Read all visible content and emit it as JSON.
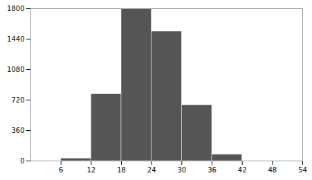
{
  "chart_data": {
    "type": "histogram",
    "bins": [
      0,
      6,
      12,
      18,
      24,
      30,
      36,
      42,
      48,
      54
    ],
    "values": [
      0,
      30,
      790,
      1800,
      1530,
      660,
      75,
      0,
      0
    ],
    "color": "#555555",
    "xlim": [
      0,
      54
    ],
    "ylim": [
      0,
      1800
    ],
    "xticks": [
      6,
      12,
      18,
      24,
      30,
      36,
      42,
      48,
      54
    ],
    "yticks": [
      0,
      360,
      720,
      1080,
      1440,
      1800
    ],
    "grid": false
  }
}
